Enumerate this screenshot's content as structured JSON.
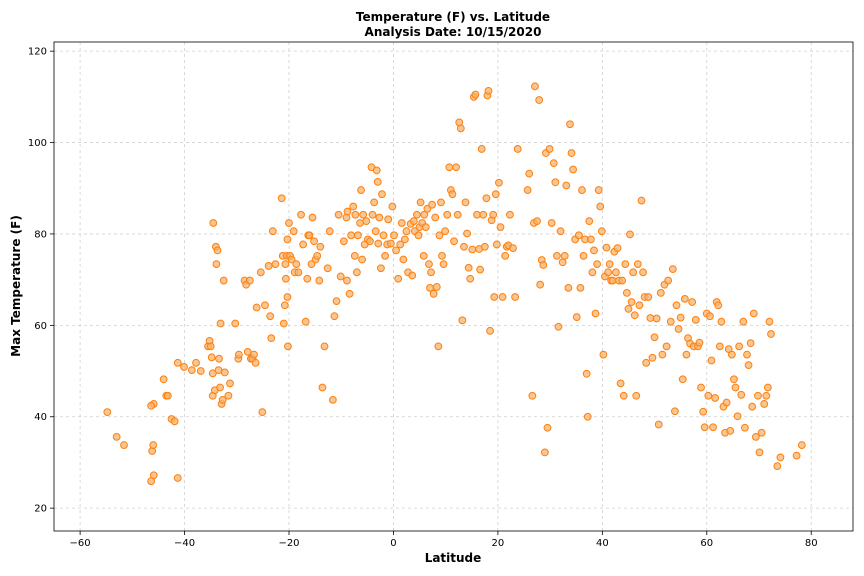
{
  "chart_data": {
    "type": "scatter",
    "title": "Temperature (F) vs. Latitude",
    "subtitle": "Analysis Date: 10/15/2020",
    "xlabel": "Latitude",
    "ylabel": "Max Temperature (F)",
    "xlim": [
      -65,
      88
    ],
    "ylim": [
      15,
      122
    ],
    "xticks": [
      -60,
      -40,
      -20,
      0,
      20,
      40,
      60,
      80
    ],
    "yticks": [
      20,
      40,
      60,
      80,
      100,
      120
    ],
    "grid": true,
    "marker_color": "#ff7f0e",
    "marker_fill": "#f5b36b",
    "points": [
      [
        -54.8,
        41
      ],
      [
        -53,
        35.6
      ],
      [
        -51.6,
        33.8
      ],
      [
        -46.4,
        25.9
      ],
      [
        -45.9,
        27.2
      ],
      [
        -46.2,
        32.5
      ],
      [
        -46,
        33.8
      ],
      [
        -45.9,
        42.8
      ],
      [
        -46.4,
        42.4
      ],
      [
        -44,
        48.2
      ],
      [
        -43.5,
        44.6
      ],
      [
        -43.2,
        44.6
      ],
      [
        -42.5,
        39.5
      ],
      [
        -41.9,
        39
      ],
      [
        -41.3,
        51.8
      ],
      [
        -41.3,
        26.6
      ],
      [
        -40.1,
        50.9
      ],
      [
        -38.6,
        50.2
      ],
      [
        -37.8,
        51.8
      ],
      [
        -36.9,
        50
      ],
      [
        -35.5,
        55.4
      ],
      [
        -35.2,
        56.6
      ],
      [
        -35,
        55.4
      ],
      [
        -34.8,
        53
      ],
      [
        -34.6,
        49.5
      ],
      [
        -34.6,
        44.6
      ],
      [
        -34.5,
        82.4
      ],
      [
        -34.2,
        45.8
      ],
      [
        -34,
        77.2
      ],
      [
        -33.9,
        73.4
      ],
      [
        -33.7,
        76.4
      ],
      [
        -33.5,
        50.2
      ],
      [
        -33.4,
        52.7
      ],
      [
        -33.2,
        46.4
      ],
      [
        -33.1,
        60.4
      ],
      [
        -32.9,
        42.8
      ],
      [
        -32.7,
        43.7
      ],
      [
        -32.5,
        69.8
      ],
      [
        -32.3,
        49.7
      ],
      [
        -31.6,
        44.6
      ],
      [
        -31.3,
        47.3
      ],
      [
        -30.3,
        60.4
      ],
      [
        -29.7,
        52.7
      ],
      [
        -29.6,
        53.6
      ],
      [
        -28.5,
        69.8
      ],
      [
        -28.2,
        68.9
      ],
      [
        -27.9,
        54.2
      ],
      [
        -27.5,
        69.8
      ],
      [
        -27.3,
        52.7
      ],
      [
        -27,
        52.7
      ],
      [
        -26.7,
        53.6
      ],
      [
        -26.4,
        51.8
      ],
      [
        -26.2,
        63.9
      ],
      [
        -25.4,
        71.6
      ],
      [
        -25.1,
        41
      ],
      [
        -24.6,
        64.4
      ],
      [
        -23.9,
        73
      ],
      [
        -23.6,
        62
      ],
      [
        -23.4,
        57.2
      ],
      [
        -23.1,
        80.6
      ],
      [
        -22.6,
        73.4
      ],
      [
        -21.4,
        87.8
      ],
      [
        -21.2,
        75.2
      ],
      [
        -21,
        60.4
      ],
      [
        -20.8,
        64.4
      ],
      [
        -20.7,
        73.4
      ],
      [
        -20.6,
        70.2
      ],
      [
        -20.4,
        75.2
      ],
      [
        -20.3,
        78.8
      ],
      [
        -20.3,
        66.2
      ],
      [
        -20.2,
        55.4
      ],
      [
        -20,
        82.4
      ],
      [
        -19.8,
        75.2
      ],
      [
        -19.5,
        74.4
      ],
      [
        -19.1,
        80.6
      ],
      [
        -18.9,
        71.6
      ],
      [
        -18.6,
        73.4
      ],
      [
        -18.2,
        71.6
      ],
      [
        -17.7,
        84.2
      ],
      [
        -17.3,
        77.7
      ],
      [
        -16.8,
        60.8
      ],
      [
        -16.5,
        70.2
      ],
      [
        -16.3,
        79.7
      ],
      [
        -16.1,
        79.7
      ],
      [
        -15.7,
        73.4
      ],
      [
        -15.5,
        83.6
      ],
      [
        -15.2,
        78.4
      ],
      [
        -14.9,
        74.4
      ],
      [
        -14.6,
        75.2
      ],
      [
        -14.2,
        69.8
      ],
      [
        -14,
        77.2
      ],
      [
        -13.6,
        46.4
      ],
      [
        -13.2,
        55.4
      ],
      [
        -12.6,
        72.5
      ],
      [
        -12.2,
        80.6
      ],
      [
        -11.6,
        43.7
      ],
      [
        -11.3,
        62
      ],
      [
        -10.9,
        65.3
      ],
      [
        -10.5,
        84.2
      ],
      [
        -10.1,
        70.7
      ],
      [
        -9.5,
        78.4
      ],
      [
        -9,
        83.6
      ],
      [
        -8.9,
        69.8
      ],
      [
        -8.8,
        84.9
      ],
      [
        -8.4,
        66.9
      ],
      [
        -8.1,
        79.7
      ],
      [
        -7.7,
        86
      ],
      [
        -7.4,
        75.2
      ],
      [
        -7.3,
        84.2
      ],
      [
        -7,
        71.6
      ],
      [
        -6.8,
        79.7
      ],
      [
        -6.4,
        82.4
      ],
      [
        -6.2,
        89.6
      ],
      [
        -6,
        74.4
      ],
      [
        -5.8,
        84.2
      ],
      [
        -5.5,
        77.7
      ],
      [
        -5.2,
        82.8
      ],
      [
        -4.9,
        78.8
      ],
      [
        -4.5,
        78.4
      ],
      [
        -4.2,
        94.6
      ],
      [
        -4,
        84.2
      ],
      [
        -3.7,
        86.9
      ],
      [
        -3.4,
        80.6
      ],
      [
        -3.2,
        93.9
      ],
      [
        -3,
        91.4
      ],
      [
        -2.9,
        77.9
      ],
      [
        -2.7,
        83.6
      ],
      [
        -2.4,
        72.5
      ],
      [
        -2.2,
        88.7
      ],
      [
        -1.9,
        79.7
      ],
      [
        -1.6,
        75.2
      ],
      [
        -1.2,
        77.7
      ],
      [
        -1,
        83.2
      ],
      [
        -0.5,
        77.9
      ],
      [
        -0.2,
        86
      ],
      [
        0.1,
        79.7
      ],
      [
        0.5,
        76.4
      ],
      [
        0.9,
        70.2
      ],
      [
        1.3,
        77.7
      ],
      [
        1.6,
        82.4
      ],
      [
        1.9,
        74.4
      ],
      [
        2.2,
        78.8
      ],
      [
        2.5,
        80.6
      ],
      [
        2.8,
        71.6
      ],
      [
        3.3,
        82.2
      ],
      [
        3.6,
        70.9
      ],
      [
        3.9,
        82.8
      ],
      [
        4.1,
        80.6
      ],
      [
        4.5,
        84.2
      ],
      [
        4.8,
        79.7
      ],
      [
        5,
        81.5
      ],
      [
        5.2,
        86.9
      ],
      [
        5.5,
        82.4
      ],
      [
        5.8,
        75.2
      ],
      [
        5.9,
        84.2
      ],
      [
        6.2,
        81.5
      ],
      [
        6.5,
        85.5
      ],
      [
        6.8,
        73.4
      ],
      [
        7,
        68.2
      ],
      [
        7.2,
        71.6
      ],
      [
        7.4,
        86.4
      ],
      [
        7.7,
        66.9
      ],
      [
        8,
        83.6
      ],
      [
        8.3,
        68.4
      ],
      [
        8.6,
        55.4
      ],
      [
        8.8,
        79.7
      ],
      [
        9.1,
        86.9
      ],
      [
        9.3,
        75.2
      ],
      [
        9.6,
        73.4
      ],
      [
        9.9,
        80.6
      ],
      [
        10.3,
        84.2
      ],
      [
        10.7,
        94.6
      ],
      [
        11,
        89.6
      ],
      [
        11.3,
        88.7
      ],
      [
        11.6,
        78.4
      ],
      [
        12,
        94.6
      ],
      [
        12.3,
        84.2
      ],
      [
        12.6,
        104.4
      ],
      [
        12.9,
        103.1
      ],
      [
        13.2,
        61.1
      ],
      [
        13.5,
        77.2
      ],
      [
        13.8,
        86.9
      ],
      [
        14.1,
        80.1
      ],
      [
        14.4,
        72.6
      ],
      [
        14.7,
        70.2
      ],
      [
        15.1,
        76.6
      ],
      [
        15.4,
        110
      ],
      [
        15.7,
        110.5
      ],
      [
        16,
        84.2
      ],
      [
        16.4,
        76.7
      ],
      [
        16.6,
        72.2
      ],
      [
        16.9,
        98.6
      ],
      [
        17.2,
        84.2
      ],
      [
        17.5,
        77.2
      ],
      [
        17.8,
        87.8
      ],
      [
        18,
        110.3
      ],
      [
        18.2,
        111.3
      ],
      [
        18.5,
        58.8
      ],
      [
        18.8,
        83
      ],
      [
        19.1,
        84.2
      ],
      [
        19.3,
        66.2
      ],
      [
        19.6,
        88.7
      ],
      [
        19.8,
        77.7
      ],
      [
        20.2,
        91.2
      ],
      [
        20.5,
        81.5
      ],
      [
        20.9,
        66.2
      ],
      [
        21.4,
        75.2
      ],
      [
        21.7,
        77.2
      ],
      [
        22,
        77.5
      ],
      [
        22.3,
        84.2
      ],
      [
        22.9,
        76.9
      ],
      [
        23.3,
        66.2
      ],
      [
        23.8,
        98.6
      ],
      [
        25.7,
        89.6
      ],
      [
        26,
        93.2
      ],
      [
        26.6,
        44.6
      ],
      [
        26.9,
        82.4
      ],
      [
        27.1,
        112.3
      ],
      [
        27.5,
        82.8
      ],
      [
        27.9,
        109.3
      ],
      [
        28.1,
        68.9
      ],
      [
        28.4,
        74.3
      ],
      [
        28.7,
        73.2
      ],
      [
        29,
        32.2
      ],
      [
        29.2,
        97.7
      ],
      [
        29.5,
        37.6
      ],
      [
        29.9,
        98.6
      ],
      [
        30.3,
        82.4
      ],
      [
        30.7,
        95.5
      ],
      [
        31,
        91.3
      ],
      [
        31.3,
        75.2
      ],
      [
        31.6,
        59.7
      ],
      [
        32,
        80.6
      ],
      [
        32.4,
        73.8
      ],
      [
        32.8,
        75.2
      ],
      [
        33.1,
        90.6
      ],
      [
        33.5,
        68.2
      ],
      [
        33.8,
        104
      ],
      [
        34.1,
        97.7
      ],
      [
        34.4,
        94.1
      ],
      [
        34.8,
        78.8
      ],
      [
        35.1,
        61.8
      ],
      [
        35.5,
        79.7
      ],
      [
        35.8,
        68.2
      ],
      [
        36.1,
        89.6
      ],
      [
        36.4,
        75.2
      ],
      [
        36.7,
        78.8
      ],
      [
        37,
        49.4
      ],
      [
        37.2,
        40
      ],
      [
        37.5,
        82.8
      ],
      [
        37.8,
        78.8
      ],
      [
        38.1,
        71.6
      ],
      [
        38.4,
        76.4
      ],
      [
        38.7,
        62.6
      ],
      [
        39,
        73.4
      ],
      [
        39.3,
        89.6
      ],
      [
        39.6,
        86
      ],
      [
        39.9,
        80.6
      ],
      [
        40.2,
        53.6
      ],
      [
        40.5,
        70.7
      ],
      [
        40.8,
        77
      ],
      [
        41.1,
        71.6
      ],
      [
        41.4,
        73.4
      ],
      [
        41.7,
        69.8
      ],
      [
        42,
        69.8
      ],
      [
        42.3,
        76.1
      ],
      [
        42.6,
        71.6
      ],
      [
        42.9,
        76.9
      ],
      [
        43.2,
        69.8
      ],
      [
        43.5,
        47.3
      ],
      [
        43.8,
        69.8
      ],
      [
        44.1,
        44.6
      ],
      [
        44.4,
        73.4
      ],
      [
        44.7,
        67.1
      ],
      [
        45,
        63.6
      ],
      [
        45.3,
        79.9
      ],
      [
        45.6,
        65.1
      ],
      [
        45.9,
        71.6
      ],
      [
        46.2,
        62.2
      ],
      [
        46.5,
        44.6
      ],
      [
        46.8,
        73.4
      ],
      [
        47.1,
        64.4
      ],
      [
        47.5,
        87.3
      ],
      [
        47.8,
        71.6
      ],
      [
        48.1,
        66.2
      ],
      [
        48.4,
        51.8
      ],
      [
        48.8,
        66.2
      ],
      [
        49.2,
        61.6
      ],
      [
        49.6,
        52.9
      ],
      [
        50,
        57.4
      ],
      [
        50.4,
        61.5
      ],
      [
        50.8,
        38.3
      ],
      [
        51.2,
        67.1
      ],
      [
        51.5,
        53.6
      ],
      [
        51.9,
        68.9
      ],
      [
        52.3,
        55.4
      ],
      [
        52.6,
        69.8
      ],
      [
        53.1,
        60.8
      ],
      [
        53.5,
        72.3
      ],
      [
        53.9,
        41.2
      ],
      [
        54.2,
        64.4
      ],
      [
        54.6,
        59.2
      ],
      [
        55,
        61.7
      ],
      [
        55.4,
        48.2
      ],
      [
        55.8,
        65.8
      ],
      [
        56.1,
        53.6
      ],
      [
        56.4,
        57.2
      ],
      [
        56.8,
        56
      ],
      [
        57.2,
        65.1
      ],
      [
        57.5,
        55.4
      ],
      [
        57.9,
        61.2
      ],
      [
        58.3,
        55.4
      ],
      [
        58.6,
        56.2
      ],
      [
        58.9,
        46.4
      ],
      [
        59.3,
        41.1
      ],
      [
        59.6,
        37.7
      ],
      [
        60,
        62.6
      ],
      [
        60.3,
        44.6
      ],
      [
        60.6,
        62
      ],
      [
        60.9,
        52.3
      ],
      [
        61.2,
        37.7
      ],
      [
        61.6,
        44.1
      ],
      [
        61.9,
        65.1
      ],
      [
        62.2,
        64.4
      ],
      [
        62.5,
        55.4
      ],
      [
        62.8,
        60.8
      ],
      [
        63.2,
        42.2
      ],
      [
        63.5,
        36.5
      ],
      [
        63.8,
        43.1
      ],
      [
        64.2,
        54.8
      ],
      [
        64.5,
        36.9
      ],
      [
        64.8,
        53.6
      ],
      [
        65.2,
        48.2
      ],
      [
        65.5,
        46.4
      ],
      [
        65.9,
        40.1
      ],
      [
        66.2,
        55.4
      ],
      [
        66.6,
        44.8
      ],
      [
        67,
        60.8
      ],
      [
        67.3,
        37.6
      ],
      [
        67.7,
        53.6
      ],
      [
        68,
        51.3
      ],
      [
        68.4,
        56.1
      ],
      [
        68.7,
        42.2
      ],
      [
        69,
        62.6
      ],
      [
        69.4,
        35.6
      ],
      [
        69.8,
        44.6
      ],
      [
        70.1,
        32.2
      ],
      [
        70.5,
        36.5
      ],
      [
        71,
        42.8
      ],
      [
        71.4,
        44.6
      ],
      [
        71.7,
        46.4
      ],
      [
        72,
        60.8
      ],
      [
        72.3,
        58.1
      ],
      [
        73.5,
        29.2
      ],
      [
        74.1,
        31.1
      ],
      [
        77.2,
        31.5
      ],
      [
        78.2,
        33.8
      ]
    ]
  }
}
